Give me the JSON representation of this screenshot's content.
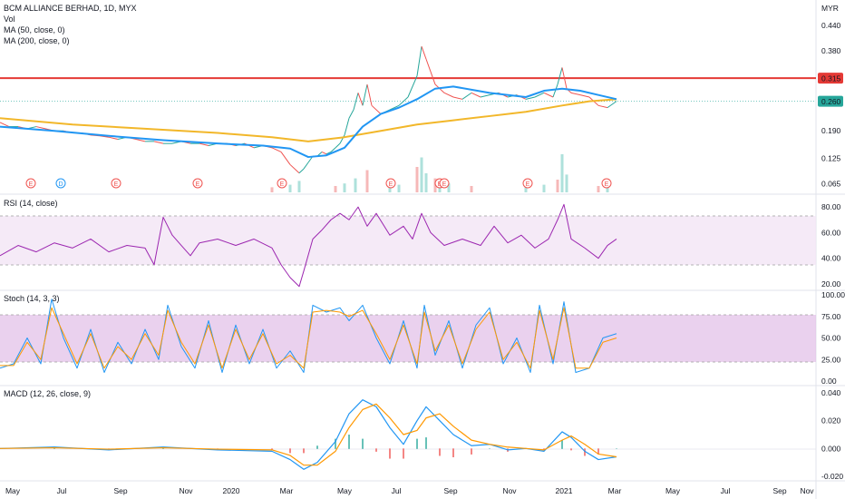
{
  "chart_data": [
    {
      "type": "line",
      "title": "BCM ALLIANCE BERHAD, 1D, MYX",
      "legend": [
        "Vol",
        "MA (50, close, 0)",
        "MA (200, close, 0)"
      ],
      "currency": "MYR",
      "ylim": [
        0.04,
        0.5
      ],
      "y_ticks": [
        "0.440",
        "0.380",
        "0.315",
        "0.260",
        "0.190",
        "0.125",
        "0.065"
      ],
      "horizontal_line": {
        "value": 0.315,
        "label": "0.315",
        "color": "#e53935"
      },
      "last_price": {
        "value": 0.26,
        "label": "0.260",
        "color": "#26a69a"
      },
      "x_ticks": [
        "May",
        "Jul",
        "Sep",
        "Nov",
        "2020",
        "Mar",
        "May",
        "Jul",
        "Sep",
        "Nov",
        "2021",
        "Mar",
        "May",
        "Jul",
        "Sep",
        "Nov"
      ],
      "price_series": {
        "name": "Close",
        "x": [
          0,
          10,
          20,
          30,
          40,
          50,
          60,
          70,
          80,
          90,
          100,
          110,
          120,
          130,
          140,
          150,
          160,
          170,
          180,
          190,
          200,
          210,
          220,
          230,
          240,
          250,
          260,
          270,
          280,
          290,
          300,
          310,
          320,
          330,
          335,
          340,
          345,
          350,
          355,
          360,
          365,
          370,
          375,
          380,
          385,
          390,
          395,
          400,
          405,
          410,
          420,
          430,
          440,
          450,
          460,
          465,
          470,
          475,
          480,
          485,
          490,
          500,
          510,
          520,
          530,
          540,
          550,
          560,
          570,
          580,
          590,
          600,
          610,
          615,
          620,
          625,
          630,
          640,
          650,
          660,
          670,
          680
        ],
        "y": [
          0.21,
          0.2,
          0.2,
          0.195,
          0.2,
          0.195,
          0.19,
          0.19,
          0.185,
          0.185,
          0.18,
          0.178,
          0.175,
          0.17,
          0.175,
          0.17,
          0.165,
          0.165,
          0.16,
          0.16,
          0.165,
          0.16,
          0.16,
          0.155,
          0.16,
          0.16,
          0.155,
          0.16,
          0.15,
          0.155,
          0.15,
          0.14,
          0.11,
          0.09,
          0.1,
          0.115,
          0.13,
          0.13,
          0.14,
          0.135,
          0.14,
          0.15,
          0.16,
          0.18,
          0.22,
          0.24,
          0.28,
          0.25,
          0.3,
          0.25,
          0.23,
          0.24,
          0.25,
          0.27,
          0.32,
          0.39,
          0.36,
          0.33,
          0.3,
          0.29,
          0.28,
          0.27,
          0.265,
          0.28,
          0.27,
          0.275,
          0.28,
          0.27,
          0.275,
          0.265,
          0.27,
          0.28,
          0.27,
          0.3,
          0.34,
          0.29,
          0.28,
          0.275,
          0.27,
          0.25,
          0.245,
          0.26
        ]
      },
      "ma50": {
        "name": "MA (50, close, 0)",
        "color": "#2196f3",
        "x": [
          0,
          60,
          120,
          180,
          240,
          290,
          320,
          340,
          360,
          380,
          400,
          420,
          440,
          460,
          480,
          500,
          540,
          580,
          600,
          620,
          640,
          660,
          680
        ],
        "y": [
          0.2,
          0.19,
          0.178,
          0.168,
          0.16,
          0.155,
          0.148,
          0.128,
          0.132,
          0.15,
          0.2,
          0.23,
          0.245,
          0.265,
          0.29,
          0.295,
          0.28,
          0.27,
          0.285,
          0.29,
          0.285,
          0.275,
          0.265
        ]
      },
      "ma200": {
        "name": "MA (200, close, 0)",
        "color": "#f2b72a",
        "x": [
          0,
          80,
          160,
          240,
          300,
          340,
          380,
          420,
          460,
          500,
          540,
          580,
          620,
          650,
          680
        ],
        "y": [
          0.22,
          0.205,
          0.195,
          0.185,
          0.175,
          0.165,
          0.175,
          0.19,
          0.205,
          0.215,
          0.225,
          0.235,
          0.25,
          0.26,
          0.265
        ]
      },
      "volume": {
        "x": [
          300,
          320,
          330,
          370,
          380,
          392,
          405,
          430,
          440,
          460,
          465,
          470,
          480,
          485,
          495,
          520,
          580,
          600,
          615,
          620,
          625,
          660,
          670
        ],
        "values": [
          8,
          12,
          18,
          10,
          14,
          22,
          35,
          15,
          12,
          40,
          55,
          30,
          22,
          18,
          14,
          10,
          8,
          12,
          20,
          60,
          28,
          10,
          8
        ]
      },
      "event_markers": [
        {
          "x": 34,
          "label": "E"
        },
        {
          "x": 67,
          "label": "D"
        },
        {
          "x": 128,
          "label": "E"
        },
        {
          "x": 218,
          "label": "E"
        },
        {
          "x": 311,
          "label": "E"
        },
        {
          "x": 431,
          "label": "E"
        },
        {
          "x": 485,
          "label": "E"
        },
        {
          "x": 490,
          "label": "E"
        },
        {
          "x": 582,
          "label": "E"
        },
        {
          "x": 669,
          "label": "E"
        }
      ]
    },
    {
      "type": "line",
      "title": "RSI (14, close)",
      "ylim": [
        15,
        90
      ],
      "y_ticks": [
        80,
        60,
        40,
        20
      ],
      "band": [
        30,
        70
      ],
      "color": "#9c27b0",
      "x": [
        0,
        20,
        40,
        60,
        80,
        100,
        120,
        140,
        160,
        170,
        180,
        190,
        200,
        210,
        220,
        240,
        260,
        280,
        300,
        310,
        320,
        330,
        335,
        345,
        355,
        365,
        375,
        385,
        395,
        405,
        415,
        430,
        445,
        455,
        465,
        475,
        490,
        510,
        530,
        545,
        560,
        575,
        590,
        605,
        615,
        622,
        630,
        645,
        660,
        670,
        680
      ],
      "y": [
        42,
        50,
        45,
        52,
        48,
        55,
        45,
        50,
        48,
        35,
        72,
        58,
        50,
        42,
        52,
        55,
        50,
        55,
        48,
        35,
        25,
        18,
        30,
        55,
        62,
        70,
        75,
        70,
        80,
        65,
        75,
        58,
        65,
        55,
        75,
        60,
        50,
        55,
        50,
        65,
        52,
        58,
        48,
        55,
        70,
        82,
        55,
        48,
        40,
        50,
        55
      ]
    },
    {
      "type": "line",
      "title": "Stoch (14, 3, 3)",
      "ylim": [
        0,
        100
      ],
      "y_ticks": [
        100,
        75,
        50,
        25,
        0
      ],
      "band": [
        20,
        80
      ],
      "series": [
        {
          "name": "%K",
          "color": "#2196f3",
          "x": [
            0,
            15,
            30,
            45,
            57,
            70,
            85,
            100,
            115,
            130,
            145,
            160,
            175,
            185,
            200,
            215,
            230,
            245,
            260,
            275,
            290,
            305,
            320,
            335,
            345,
            360,
            375,
            385,
            400,
            415,
            430,
            445,
            460,
            468,
            480,
            495,
            510,
            525,
            540,
            555,
            570,
            585,
            595,
            610,
            622,
            635,
            650,
            665,
            680
          ],
          "y": [
            15,
            20,
            50,
            20,
            95,
            50,
            15,
            60,
            10,
            45,
            20,
            60,
            25,
            88,
            40,
            15,
            70,
            10,
            65,
            20,
            60,
            15,
            35,
            10,
            88,
            80,
            85,
            70,
            88,
            50,
            20,
            70,
            15,
            88,
            30,
            70,
            15,
            65,
            85,
            20,
            50,
            10,
            88,
            20,
            92,
            10,
            15,
            50,
            55
          ]
        },
        {
          "name": "%D",
          "color": "#ff9800",
          "x": [
            0,
            15,
            30,
            45,
            57,
            70,
            85,
            100,
            115,
            130,
            145,
            160,
            175,
            185,
            200,
            215,
            230,
            245,
            260,
            275,
            290,
            305,
            320,
            335,
            345,
            360,
            375,
            385,
            400,
            415,
            430,
            445,
            460,
            468,
            480,
            495,
            510,
            525,
            540,
            555,
            570,
            585,
            595,
            610,
            622,
            635,
            650,
            665,
            680
          ],
          "y": [
            18,
            18,
            45,
            25,
            85,
            55,
            20,
            55,
            15,
            40,
            25,
            55,
            30,
            82,
            45,
            20,
            65,
            15,
            60,
            25,
            55,
            20,
            30,
            15,
            80,
            82,
            80,
            75,
            82,
            55,
            25,
            65,
            20,
            80,
            35,
            65,
            20,
            60,
            80,
            25,
            45,
            15,
            82,
            25,
            85,
            15,
            15,
            45,
            50
          ]
        }
      ]
    },
    {
      "type": "line",
      "title": "MACD (12, 26, close, 9)",
      "ylim": [
        -0.022,
        0.042
      ],
      "y_ticks": [
        "0.040",
        "0.020",
        "0.000",
        "-0.020"
      ],
      "series": [
        {
          "name": "MACD",
          "color": "#2196f3",
          "x": [
            0,
            60,
            120,
            180,
            240,
            300,
            320,
            335,
            350,
            370,
            385,
            400,
            415,
            430,
            445,
            460,
            470,
            485,
            500,
            520,
            540,
            560,
            580,
            600,
            620,
            630,
            645,
            660,
            680
          ],
          "y": [
            0,
            0.001,
            -0.001,
            0.001,
            -0.001,
            -0.002,
            -0.008,
            -0.015,
            -0.01,
            0.005,
            0.025,
            0.035,
            0.03,
            0.015,
            0.003,
            0.02,
            0.03,
            0.02,
            0.01,
            0.002,
            0.003,
            -0.001,
            0,
            -0.002,
            0.012,
            0.008,
            -0.002,
            -0.008,
            -0.006
          ]
        },
        {
          "name": "Signal",
          "color": "#ff9800",
          "x": [
            0,
            60,
            120,
            180,
            240,
            300,
            320,
            335,
            350,
            370,
            385,
            400,
            415,
            430,
            445,
            460,
            470,
            485,
            500,
            520,
            540,
            560,
            580,
            600,
            620,
            630,
            645,
            660,
            680
          ],
          "y": [
            0,
            0.0005,
            -0.0005,
            0.0005,
            -0.0005,
            -0.001,
            -0.005,
            -0.012,
            -0.012,
            -0.002,
            0.015,
            0.028,
            0.032,
            0.022,
            0.01,
            0.013,
            0.022,
            0.025,
            0.016,
            0.006,
            0.003,
            0.001,
            0,
            -0.001,
            0.006,
            0.009,
            0.003,
            -0.004,
            -0.006
          ]
        }
      ]
    }
  ]
}
